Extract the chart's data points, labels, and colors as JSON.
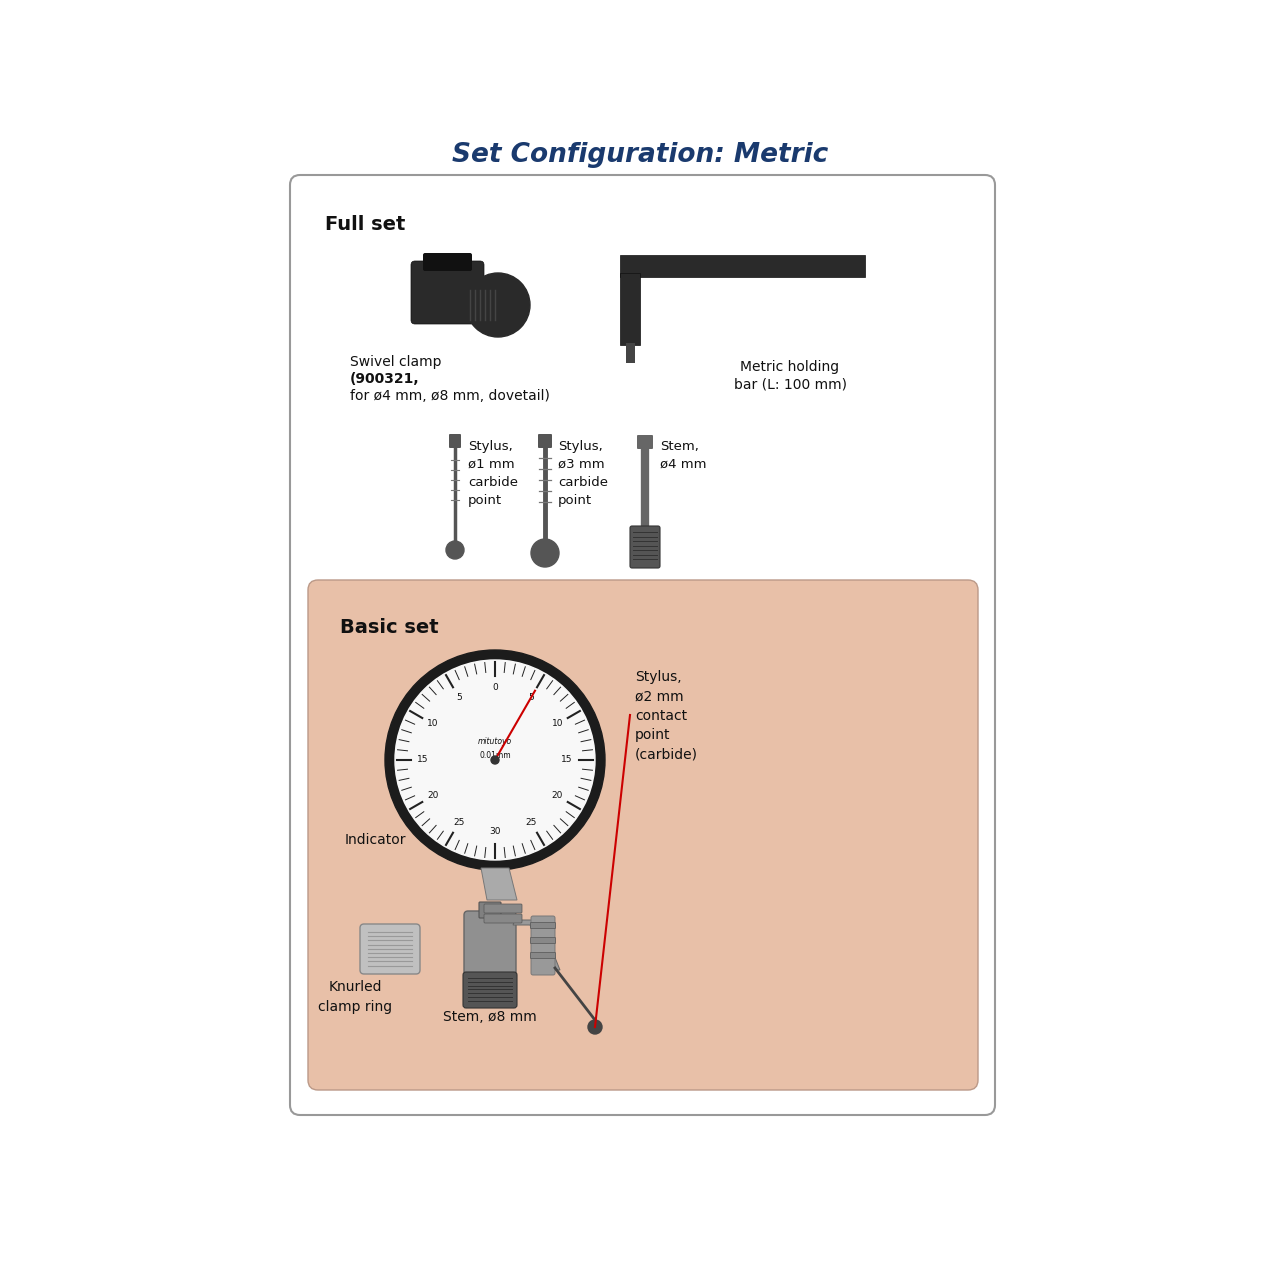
{
  "title": "Set Configuration: Metric",
  "title_color": "#1a3a6e",
  "title_fontsize": 19,
  "bg_color": "#ffffff",
  "full_set_label": "Full set",
  "basic_set_label": "Basic set",
  "basic_set_bg": "#e8c0a8",
  "swivel_clamp_line1": "Swivel clamp",
  "swivel_clamp_line2": "(900321,",
  "swivel_clamp_line3": "for ø4 mm, ø8 mm, dovetail)",
  "metric_bar_line1": "Metric holding",
  "metric_bar_line2": "bar (L: 100 mm)",
  "stylus1_text": "Stylus,\nø1 mm\ncarbide\npoint",
  "stylus3_text": "Stylus,\nø3 mm\ncarbide\npoint",
  "stem4_text": "Stem,\nø4 mm",
  "indicator_text": "Indicator",
  "stylus2_text": "Stylus,\nø2 mm\ncontact\npoint\n(carbide)",
  "knurled_text": "Knurled\nclamp ring",
  "stem8_text": "Stem, ø8 mm",
  "text_color": "#111111",
  "red_line_color": "#cc0000",
  "dark_part": "#2a2a2a",
  "mid_part": "#666666",
  "light_part": "#aaaaaa"
}
